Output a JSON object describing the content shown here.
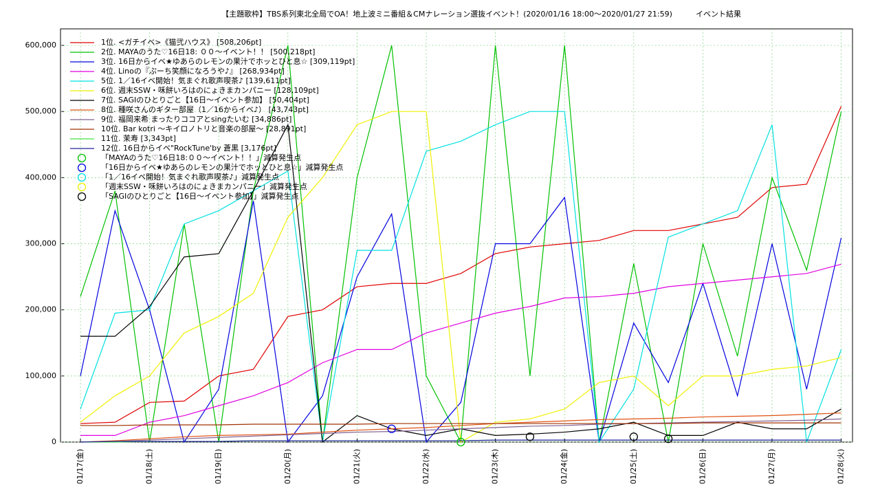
{
  "chart_data": {
    "type": "line",
    "title": "【主題歌枠】TBS系列東北全局でOA！地上波ミニ番組＆CMナレーション選抜イベント！(2020/01/16 18:00〜2020/01/27 21:59)",
    "subtitle": "イベント結果",
    "categories": [
      "01/17(金)",
      null,
      "01/18(土)",
      null,
      "01/19(日)",
      null,
      "01/20(月)",
      null,
      "01/21(火)",
      null,
      "01/22(水)",
      null,
      "01/23(木)",
      null,
      "01/24(金)",
      null,
      "01/25(土)",
      null,
      "01/26(日)",
      null,
      "01/27(月)",
      null,
      "01/28(火)"
    ],
    "ylim": [
      0,
      625000
    ],
    "yticks": [
      0,
      {
        "value": 100000,
        "label": "100,000"
      },
      {
        "value": 200000,
        "label": "200,000"
      },
      {
        "value": 300000,
        "label": "300,000"
      },
      {
        "value": 400000,
        "label": "400,000"
      },
      {
        "value": 500000,
        "label": "500,000"
      },
      {
        "value": 600000,
        "label": "600,000"
      }
    ],
    "grid": true,
    "legend": "upper-left",
    "series": [
      {
        "name": "1位. <ガチイベ>《猫弐ハウス》 [508,206pt]",
        "color": "#e00000",
        "values": [
          28000,
          30000,
          60000,
          62000,
          100000,
          110000,
          190000,
          200000,
          235000,
          240000,
          240000,
          255000,
          285000,
          295000,
          300000,
          305000,
          320000,
          320000,
          330000,
          340000,
          385000,
          390000,
          508000
        ]
      },
      {
        "name": "2位. MAYAのうた♡16日18: ００〜イベント！！ [500,218pt]",
        "color": "#00c000",
        "values": [
          220000,
          380000,
          0,
          330000,
          0,
          380000,
          600000,
          0,
          400000,
          600000,
          100000,
          0,
          600000,
          100000,
          600000,
          0,
          270000,
          0,
          300000,
          130000,
          400000,
          260000,
          500000
        ]
      },
      {
        "name": "3位. 16日からイベ★ゆあらのレモンの果汁でホッとひと息☆ [309,119pt]",
        "color": "#0000e0",
        "values": [
          100000,
          350000,
          200000,
          0,
          80000,
          365000,
          0,
          70000,
          250000,
          345000,
          0,
          60000,
          300000,
          300000,
          370000,
          0,
          180000,
          90000,
          240000,
          70000,
          300000,
          80000,
          309000
        ]
      },
      {
        "name": "4位. Linoの『ぷーち笑顔になろうや♪』 [268,934pt]",
        "color": "#e000e0",
        "values": [
          10000,
          10000,
          30000,
          40000,
          55000,
          70000,
          90000,
          120000,
          140000,
          140000,
          165000,
          180000,
          195000,
          205000,
          218000,
          220000,
          225000,
          235000,
          240000,
          245000,
          250000,
          255000,
          269000
        ]
      },
      {
        "name": "5位. 1／16イベ開始！気まぐれ歌声喫茶♪ [139,611pt]",
        "color": "#00e0e0",
        "values": [
          50000,
          195000,
          200000,
          330000,
          350000,
          380000,
          410000,
          0,
          290000,
          290000,
          440000,
          455000,
          480000,
          500000,
          500000,
          0,
          80000,
          310000,
          330000,
          350000,
          480000,
          0,
          140000
        ]
      },
      {
        "name": "6位. 週末SSW・咊餅いろはのにょきまカンパニー [128,109pt]",
        "color": "#f0f000",
        "values": [
          30000,
          70000,
          100000,
          165000,
          190000,
          225000,
          340000,
          400000,
          480000,
          500000,
          500000,
          0,
          30000,
          35000,
          50000,
          90000,
          100000,
          55000,
          100000,
          100000,
          110000,
          115000,
          128000
        ]
      },
      {
        "name": "7位. SAGIのひとりごと【16日〜イベント参加】 [50,404pt]",
        "color": "#000000",
        "values": [
          160000,
          160000,
          205000,
          280000,
          285000,
          380000,
          480000,
          0,
          40000,
          20000,
          10000,
          20000,
          10000,
          12000,
          15000,
          20000,
          30000,
          10000,
          10000,
          30000,
          20000,
          20000,
          50000
        ]
      },
      {
        "name": "8位. 種咲さんのギター部屋（1／16からイベ♪） [43,743pt]",
        "color": "#e05010",
        "values": [
          0,
          2000,
          5000,
          8000,
          10000,
          11000,
          12000,
          15000,
          18000,
          20000,
          22000,
          25000,
          28000,
          30000,
          32000,
          34000,
          35000,
          36000,
          38000,
          39000,
          40000,
          42000,
          44000
        ]
      },
      {
        "name": "9位. 福岡来希 まったりココアとsingたいむ [34,886pt]",
        "color": "#806090",
        "values": [
          0,
          1000,
          3000,
          5000,
          7000,
          9000,
          11000,
          13000,
          15000,
          16000,
          18000,
          20000,
          22000,
          24000,
          25000,
          27000,
          28000,
          29000,
          30000,
          31000,
          32000,
          33000,
          35000
        ]
      },
      {
        "name": "10位. Bar kotri 〜キイロノトリと音楽の部屋〜 [28,891pt]",
        "color": "#a03000",
        "values": [
          25000,
          25000,
          26000,
          26000,
          26000,
          27000,
          27000,
          27000,
          27000,
          28000,
          28000,
          28000,
          28000,
          28000,
          28000,
          28000,
          28000,
          28000,
          29000,
          29000,
          29000,
          29000,
          29000
        ]
      },
      {
        "name": "11位. 茉寿 [3,343pt]",
        "color": "#40e040",
        "values": [
          0,
          0,
          1000,
          1000,
          1000,
          2000,
          2000,
          2000,
          2000,
          2000,
          2000,
          2000,
          3000,
          3000,
          3000,
          3000,
          3000,
          3000,
          3000,
          3000,
          3000,
          3000,
          3000
        ]
      },
      {
        "name": "12位. 16日からイベ\"RockTune'by 蒼黒 [3,176pt]",
        "color": "#2020a0",
        "values": [
          0,
          1000,
          1000,
          1000,
          1000,
          2000,
          2000,
          2000,
          2000,
          2000,
          2000,
          2000,
          3000,
          3000,
          3000,
          3000,
          3000,
          3000,
          3000,
          3000,
          3000,
          3000,
          3000
        ]
      }
    ],
    "markers": [
      {
        "name": "「MAYAのうた♡16日18:００〜イベント！！」減算発生点",
        "color": "#00c000",
        "values": [
          null,
          null,
          null,
          null,
          null,
          null,
          null,
          null,
          null,
          null,
          null,
          0,
          null,
          null,
          null,
          null,
          null,
          null,
          null,
          null,
          null,
          null,
          null
        ]
      },
      {
        "name": "「16日からイベ★ゆあらのレモンの果汁でホッとひと息☆」減算発生点",
        "color": "#0000e0",
        "values": [
          null,
          null,
          null,
          null,
          null,
          null,
          null,
          null,
          null,
          20000,
          null,
          null,
          null,
          null,
          null,
          null,
          null,
          null,
          null,
          null,
          null,
          null,
          null
        ]
      },
      {
        "name": "「1／16イベ開始！気まぐれ歌声喫茶♪」減算発生点",
        "color": "#00e0e0",
        "values": [
          null,
          null,
          null,
          null,
          null,
          null,
          null,
          null,
          null,
          null,
          null,
          null,
          null,
          null,
          null,
          null,
          null,
          null,
          null,
          null,
          null,
          null,
          null
        ]
      },
      {
        "name": "「週末SSW・咊餅いろはのにょきまカンパニー」減算発生点",
        "color": "#f0f000",
        "values": [
          null,
          null,
          null,
          null,
          null,
          null,
          null,
          null,
          null,
          null,
          null,
          null,
          null,
          null,
          null,
          null,
          null,
          null,
          null,
          null,
          null,
          null,
          null
        ]
      },
      {
        "name": "「SAGIのひとりごと【16日〜イベント参加】」減算発生点",
        "color": "#000000",
        "values": [
          null,
          null,
          null,
          null,
          null,
          null,
          null,
          null,
          null,
          null,
          null,
          null,
          null,
          8000,
          null,
          null,
          8000,
          5000,
          null,
          null,
          null,
          null,
          null
        ]
      }
    ]
  }
}
